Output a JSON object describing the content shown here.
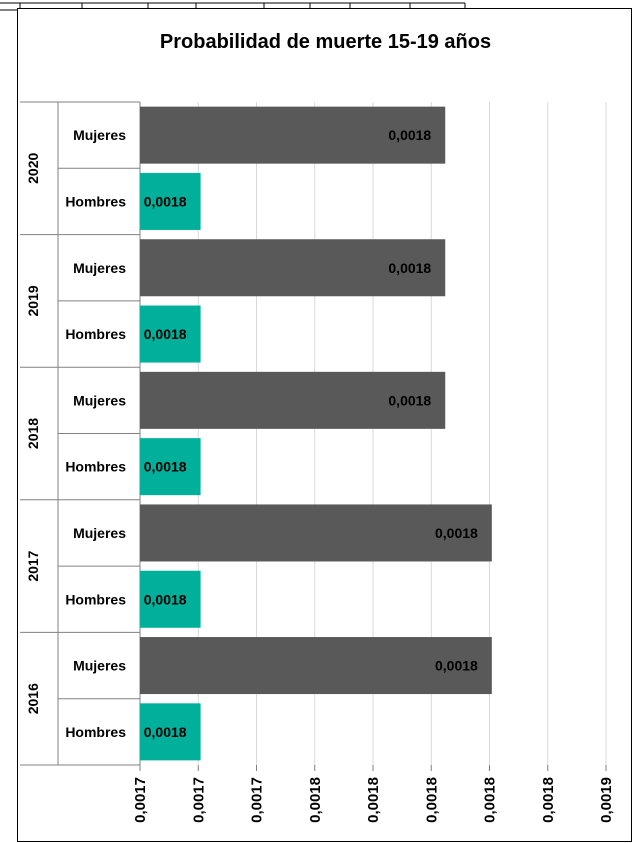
{
  "chart_data": {
    "type": "bar",
    "orientation": "horizontal",
    "title": "Probabilidad de muerte 15-19 años",
    "xlabel": "",
    "ylabel": "",
    "groups": [
      "2020",
      "2019",
      "2018",
      "2017",
      "2016"
    ],
    "categories": [
      "Mujeres",
      "Hombres"
    ],
    "series": [
      {
        "group": "2020",
        "values": [
          0.001831,
          0.001726
        ]
      },
      {
        "group": "2019",
        "values": [
          0.001831,
          0.001726
        ]
      },
      {
        "group": "2018",
        "values": [
          0.001831,
          0.001726
        ]
      },
      {
        "group": "2017",
        "values": [
          0.001851,
          0.001726
        ]
      },
      {
        "group": "2016",
        "values": [
          0.001851,
          0.001726
        ]
      }
    ],
    "value_labels": [
      [
        "0,0018",
        "0,0018"
      ],
      [
        "0,0018",
        "0,0018"
      ],
      [
        "0,0018",
        "0,0018"
      ],
      [
        "0,0018",
        "0,0018"
      ],
      [
        "0,0018",
        "0,0018"
      ]
    ],
    "xlim": [
      0.0017,
      0.0019
    ],
    "x_ticks": [
      "0,0017",
      "0,0017",
      "0,0017",
      "0,0018",
      "0,0018",
      "0,0018",
      "0,0018",
      "0,0018",
      "0,0019"
    ],
    "grid": true,
    "colors": {
      "Mujeres": "#595959",
      "Hombres": "#00b09b"
    }
  }
}
